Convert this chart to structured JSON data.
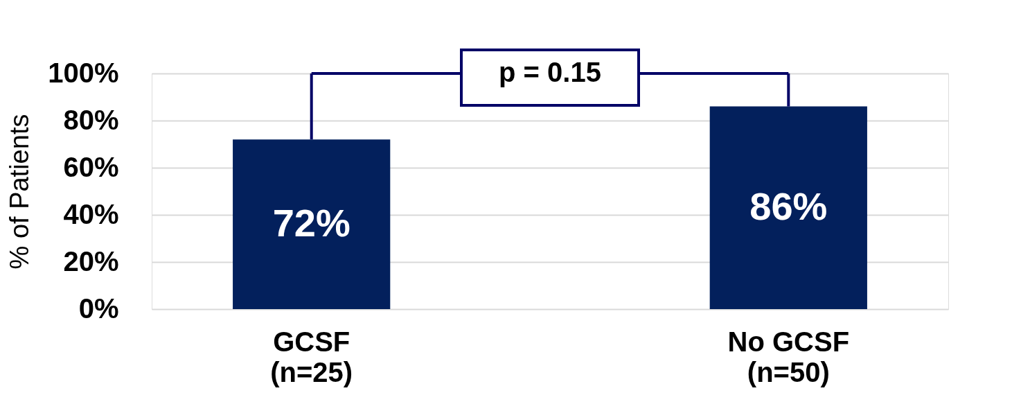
{
  "chart_data": {
    "type": "bar",
    "ylabel": "% of Patients",
    "categories": [
      "GCSF\n(n=25)",
      "No GCSF\n(n=50)"
    ],
    "series": [
      {
        "color": "#03205c",
        "values": [
          72,
          86
        ],
        "value_labels": [
          "72%",
          "86%"
        ]
      }
    ],
    "ylim": [
      0,
      100
    ],
    "yticks": [
      {
        "value": 0,
        "label": "0%"
      },
      {
        "value": 20,
        "label": "20%"
      },
      {
        "value": 40,
        "label": "40%"
      },
      {
        "value": 60,
        "label": "60%"
      },
      {
        "value": 80,
        "label": "80%"
      },
      {
        "value": 100,
        "label": "100%"
      }
    ],
    "grid": "y",
    "annotations": [
      "p = 0.15"
    ]
  }
}
